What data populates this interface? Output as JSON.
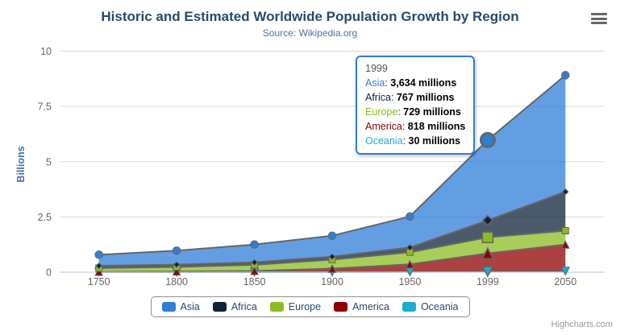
{
  "chart": {
    "title": "Historic and Estimated Worldwide Population Growth by Region",
    "subtitle": "Source: Wikipedia.org",
    "credits": "Highcharts.com"
  },
  "colors": {
    "title": "#274b6d",
    "subtitle": "#4d759e",
    "axis_labels": "#666666",
    "y_axis_title": "#4572a7",
    "grid": "#d8d8d8",
    "axis_line": "#c0d0e0",
    "series_line": "#666666",
    "marker_stroke": "#666666",
    "legend_border": "#909090",
    "legend_text": "#274b6d",
    "tooltip_border": "#2f7ed8",
    "credits_text": "#999999"
  },
  "chart_data": {
    "type": "area",
    "stacking": "normal",
    "title": "Historic and Estimated Worldwide Population Growth by Region",
    "subtitle": "Source: Wikipedia.org",
    "categories": [
      "1750",
      "1800",
      "1850",
      "1900",
      "1950",
      "1999",
      "2050"
    ],
    "series": [
      {
        "name": "Asia",
        "color": "#2f7ed8",
        "marker": "circle",
        "values": [
          502,
          635,
          809,
          947,
          1402,
          3634,
          5268
        ]
      },
      {
        "name": "Africa",
        "color": "#0d233a",
        "marker": "diamond",
        "values": [
          106,
          107,
          111,
          133,
          221,
          767,
          1766
        ]
      },
      {
        "name": "Europe",
        "color": "#8bbc21",
        "marker": "square",
        "values": [
          163,
          203,
          276,
          408,
          547,
          729,
          628
        ]
      },
      {
        "name": "America",
        "color": "#910000",
        "marker": "triangle",
        "values": [
          18,
          31,
          54,
          156,
          339,
          818,
          1201
        ]
      },
      {
        "name": "Oceania",
        "color": "#1aadce",
        "marker": "triangle-down",
        "values": [
          2,
          2,
          2,
          6,
          13,
          30,
          46
        ]
      }
    ],
    "value_unit": "millions",
    "xlabel": "",
    "ylabel": "Billions",
    "yticks": [
      0,
      2.5,
      5,
      7.5,
      10
    ],
    "ylim": [
      0,
      10
    ],
    "grid": "horizontal",
    "fill_opacity": 0.75,
    "legend_position": "bottom",
    "hover_category": "1999"
  },
  "tooltip": {
    "header": "1999",
    "rows": [
      {
        "name": "Asia",
        "value": "3,634 millions",
        "color": "#2f7ed8"
      },
      {
        "name": "Africa",
        "value": "767 millions",
        "color": "#0d233a"
      },
      {
        "name": "Europe",
        "value": "729 millions",
        "color": "#8bbc21"
      },
      {
        "name": "America",
        "value": "818 millions",
        "color": "#910000"
      },
      {
        "name": "Oceania",
        "value": "30 millions",
        "color": "#1aadce"
      }
    ]
  },
  "legend": {
    "items": [
      {
        "label": "Asia",
        "color": "#2f7ed8"
      },
      {
        "label": "Africa",
        "color": "#0d233a"
      },
      {
        "label": "Europe",
        "color": "#8bbc21"
      },
      {
        "label": "America",
        "color": "#910000"
      },
      {
        "label": "Oceania",
        "color": "#1aadce"
      }
    ]
  },
  "icons": {
    "menu": "hamburger-icon"
  }
}
